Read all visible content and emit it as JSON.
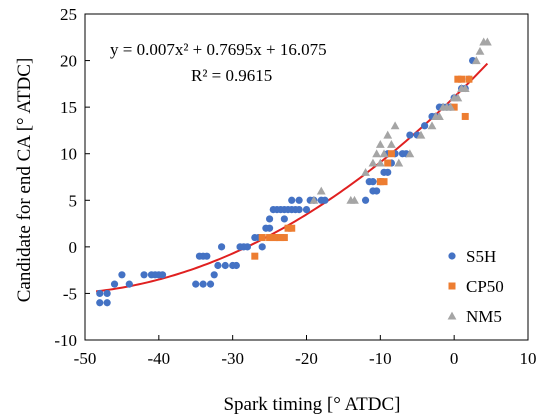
{
  "chart_data": {
    "type": "scatter",
    "xlabel": "Spark timing [° ATDC]",
    "ylabel": "Candidate for end CA [° ATDC]",
    "xlim": [
      -50,
      10
    ],
    "ylim": [
      -10,
      25
    ],
    "xticks": [
      -50,
      -40,
      -30,
      -20,
      -10,
      0,
      10
    ],
    "yticks": [
      -10,
      -5,
      0,
      5,
      10,
      15,
      20,
      25
    ],
    "x_tick_labels": [
      "-50",
      "-40",
      "-30",
      "-20",
      "-10",
      "0",
      "10"
    ],
    "y_tick_labels": [
      "-10",
      "-5",
      "0",
      "5",
      "10",
      "15",
      "20",
      "25"
    ],
    "grid": false,
    "legend_position": "bottom-right",
    "annotations": {
      "equation": "y = 0.007x² + 0.7695x + 16.075",
      "r_squared": "R² = 0.9615"
    },
    "fit": {
      "type": "polynomial",
      "a": 0.007,
      "b": 0.7695,
      "c": 16.075,
      "x_range": [
        -48.5,
        4.5
      ],
      "color": "#e02020"
    },
    "series": [
      {
        "name": "S5H",
        "marker": "circle",
        "color": "#4472c4",
        "points": [
          [
            -48,
            -5
          ],
          [
            -48,
            -6
          ],
          [
            -47,
            -6
          ],
          [
            -47,
            -5
          ],
          [
            -46,
            -4
          ],
          [
            -45,
            -3
          ],
          [
            -44,
            -4
          ],
          [
            -42,
            -3
          ],
          [
            -41,
            -3
          ],
          [
            -40.5,
            -3
          ],
          [
            -40,
            -3
          ],
          [
            -39.5,
            -3
          ],
          [
            -35,
            -4
          ],
          [
            -34.5,
            -1
          ],
          [
            -34,
            -1
          ],
          [
            -34,
            -4
          ],
          [
            -33.5,
            -1
          ],
          [
            -33,
            -4
          ],
          [
            -32.5,
            -3
          ],
          [
            -32,
            -2
          ],
          [
            -31.5,
            0
          ],
          [
            -31,
            -2
          ],
          [
            -30,
            -2
          ],
          [
            -29.5,
            -2
          ],
          [
            -29,
            0
          ],
          [
            -28.5,
            0
          ],
          [
            -28,
            0
          ],
          [
            -27,
            1
          ],
          [
            -26.5,
            1
          ],
          [
            -26,
            0
          ],
          [
            -25.5,
            2
          ],
          [
            -25,
            2
          ],
          [
            -25,
            3
          ],
          [
            -24.5,
            4
          ],
          [
            -24,
            4
          ],
          [
            -24,
            1
          ],
          [
            -23.5,
            4
          ],
          [
            -23,
            4
          ],
          [
            -23,
            3
          ],
          [
            -22.5,
            4
          ],
          [
            -22,
            5
          ],
          [
            -22,
            4
          ],
          [
            -21.5,
            4
          ],
          [
            -21,
            4
          ],
          [
            -21,
            5
          ],
          [
            -20,
            4
          ],
          [
            -19.5,
            5
          ],
          [
            -19,
            5
          ],
          [
            -18,
            5
          ],
          [
            -17.5,
            5
          ],
          [
            -12,
            5
          ],
          [
            -11.5,
            7
          ],
          [
            -11,
            7
          ],
          [
            -11,
            6
          ],
          [
            -10.5,
            6
          ],
          [
            -10,
            7
          ],
          [
            -9.5,
            8
          ],
          [
            -9,
            8
          ],
          [
            -9,
            10
          ],
          [
            -8.5,
            9
          ],
          [
            -8,
            10
          ],
          [
            -7,
            10
          ],
          [
            -6.5,
            10
          ],
          [
            -6,
            12
          ],
          [
            -5,
            12
          ],
          [
            -4,
            13
          ],
          [
            -3,
            14
          ],
          [
            -2.5,
            14
          ],
          [
            -2,
            15
          ],
          [
            -1.5,
            15
          ],
          [
            -1,
            15
          ],
          [
            -0.5,
            15
          ],
          [
            0,
            16
          ],
          [
            1,
            17
          ],
          [
            1.5,
            17
          ],
          [
            2,
            18
          ],
          [
            2.5,
            20
          ]
        ]
      },
      {
        "name": "CP50",
        "marker": "square",
        "color": "#ed7d31",
        "points": [
          [
            -27,
            -1
          ],
          [
            -26,
            1
          ],
          [
            -25,
            1
          ],
          [
            -24.5,
            1
          ],
          [
            -24,
            1
          ],
          [
            -23.5,
            1
          ],
          [
            -23,
            1
          ],
          [
            -22.5,
            2
          ],
          [
            -22,
            2
          ],
          [
            -10,
            7
          ],
          [
            -9.5,
            7
          ],
          [
            -9,
            9
          ],
          [
            -8.5,
            10
          ],
          [
            0,
            15
          ],
          [
            0.5,
            18
          ],
          [
            1,
            18
          ],
          [
            1.5,
            14
          ],
          [
            2,
            18
          ]
        ]
      },
      {
        "name": "NM5",
        "marker": "triangle",
        "color": "#a5a5a5",
        "points": [
          [
            -19,
            5
          ],
          [
            -18,
            6
          ],
          [
            -14,
            5
          ],
          [
            -13.5,
            5
          ],
          [
            -12,
            8
          ],
          [
            -11,
            9
          ],
          [
            -10.5,
            10
          ],
          [
            -10,
            9
          ],
          [
            -10,
            11
          ],
          [
            -9.5,
            10
          ],
          [
            -9,
            12
          ],
          [
            -8.5,
            11
          ],
          [
            -8,
            13
          ],
          [
            -7.5,
            9
          ],
          [
            -6,
            10
          ],
          [
            -4.5,
            12
          ],
          [
            -3,
            13
          ],
          [
            -2.5,
            14
          ],
          [
            -2,
            14
          ],
          [
            -1.5,
            15
          ],
          [
            -1,
            15
          ],
          [
            -0.5,
            15
          ],
          [
            0,
            16
          ],
          [
            0.5,
            16
          ],
          [
            1,
            17
          ],
          [
            1.5,
            17
          ],
          [
            3,
            20
          ],
          [
            3.5,
            21
          ],
          [
            4,
            22
          ],
          [
            4.5,
            22
          ]
        ]
      }
    ]
  }
}
